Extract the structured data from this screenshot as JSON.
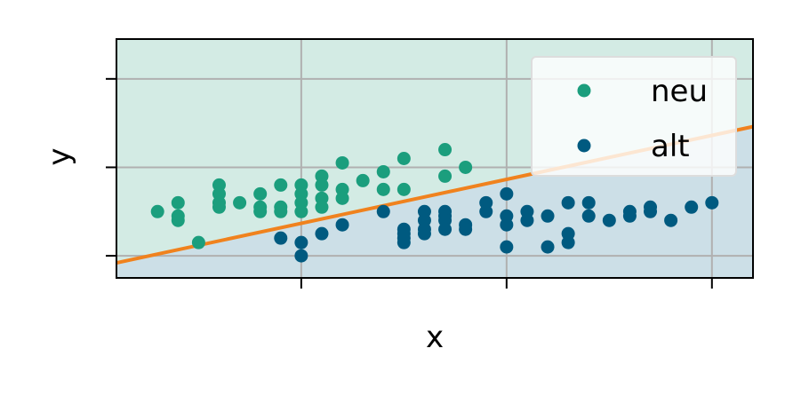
{
  "chart_data": {
    "type": "scatter",
    "title": "",
    "xlabel": "x",
    "ylabel": "y",
    "grid": true,
    "legend_position": "top-right",
    "xlim": [
      -0.9,
      2.2
    ],
    "ylim": [
      -1.25,
      1.45
    ],
    "xticks": [
      0,
      1,
      2
    ],
    "yticks": [
      -1,
      0,
      1
    ],
    "series": [
      {
        "name": "neu",
        "color": "#1b9e7d",
        "points": [
          [
            -0.7,
            -0.5
          ],
          [
            -0.6,
            -0.4
          ],
          [
            -0.6,
            -0.55
          ],
          [
            -0.6,
            -0.6
          ],
          [
            -0.5,
            -0.85
          ],
          [
            -0.4,
            -0.2
          ],
          [
            -0.4,
            -0.3
          ],
          [
            -0.4,
            -0.4
          ],
          [
            -0.4,
            -0.45
          ],
          [
            -0.3,
            -0.4
          ],
          [
            -0.2,
            -0.3
          ],
          [
            -0.2,
            -0.45
          ],
          [
            -0.2,
            -0.5
          ],
          [
            -0.1,
            -0.2
          ],
          [
            -0.1,
            -0.45
          ],
          [
            -0.1,
            -0.5
          ],
          [
            0.0,
            -0.2
          ],
          [
            0.0,
            -0.3
          ],
          [
            0.0,
            -0.4
          ],
          [
            0.0,
            -0.5
          ],
          [
            0.1,
            -0.1
          ],
          [
            0.1,
            -0.2
          ],
          [
            0.1,
            -0.35
          ],
          [
            0.1,
            -0.45
          ],
          [
            0.2,
            -0.25
          ],
          [
            0.2,
            -0.35
          ],
          [
            0.2,
            0.05
          ],
          [
            0.3,
            -0.15
          ],
          [
            0.4,
            -0.05
          ],
          [
            0.4,
            -0.25
          ],
          [
            0.5,
            -0.25
          ],
          [
            0.5,
            0.1
          ],
          [
            0.7,
            0.2
          ],
          [
            0.7,
            -0.1
          ],
          [
            0.8,
            0.0
          ]
        ]
      },
      {
        "name": "alt",
        "color": "#005a80",
        "points": [
          [
            -0.1,
            -0.8
          ],
          [
            0.0,
            -0.85
          ],
          [
            0.0,
            -1.0
          ],
          [
            0.1,
            -0.75
          ],
          [
            0.2,
            -0.65
          ],
          [
            0.4,
            -0.5
          ],
          [
            0.5,
            -0.7
          ],
          [
            0.5,
            -0.75
          ],
          [
            0.5,
            -0.8
          ],
          [
            0.5,
            -0.85
          ],
          [
            0.6,
            -0.5
          ],
          [
            0.6,
            -0.6
          ],
          [
            0.6,
            -0.7
          ],
          [
            0.6,
            -0.75
          ],
          [
            0.7,
            -0.5
          ],
          [
            0.7,
            -0.55
          ],
          [
            0.7,
            -0.6
          ],
          [
            0.7,
            -0.7
          ],
          [
            0.8,
            -0.65
          ],
          [
            0.8,
            -0.7
          ],
          [
            0.9,
            -0.4
          ],
          [
            0.9,
            -0.5
          ],
          [
            1.0,
            -0.3
          ],
          [
            1.0,
            -0.55
          ],
          [
            1.0,
            -0.65
          ],
          [
            1.0,
            -0.9
          ],
          [
            1.1,
            -0.5
          ],
          [
            1.1,
            -0.6
          ],
          [
            1.2,
            -0.55
          ],
          [
            1.2,
            -0.9
          ],
          [
            1.3,
            -0.4
          ],
          [
            1.3,
            -0.75
          ],
          [
            1.3,
            -0.85
          ],
          [
            1.4,
            -0.4
          ],
          [
            1.4,
            -0.55
          ],
          [
            1.5,
            -0.6
          ],
          [
            1.6,
            -0.5
          ],
          [
            1.6,
            -0.55
          ],
          [
            1.7,
            -0.45
          ],
          [
            1.7,
            -0.5
          ],
          [
            1.8,
            -0.6
          ],
          [
            1.9,
            -0.45
          ],
          [
            2.0,
            -0.4
          ]
        ]
      }
    ],
    "decision_line": {
      "color": "#f0821e",
      "x": [
        -0.9,
        2.2
      ],
      "y": [
        -1.08,
        0.46
      ]
    },
    "regions": {
      "above_color": "#d3ebe4",
      "below_color": "#ccdfe7"
    }
  }
}
